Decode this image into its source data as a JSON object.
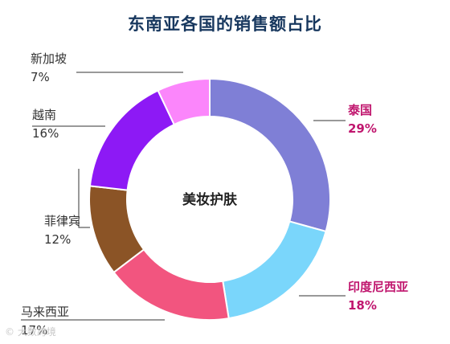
{
  "chart_data": {
    "type": "pie",
    "title": "东南亚各国的销售额占比",
    "center_label": "美妆护肤",
    "slices": [
      {
        "name": "泰国",
        "value": 29,
        "label": "29%",
        "color": "#7f7fd6",
        "label_color": "#c0166e"
      },
      {
        "name": "印度尼西亚",
        "value": 18,
        "label": "18%",
        "color": "#7ad6fb",
        "label_color": "#c0166e"
      },
      {
        "name": "马来西亚",
        "value": 17,
        "label": "17%",
        "color": "#f2557f",
        "label_color": "#333333"
      },
      {
        "name": "菲律宾",
        "value": 12,
        "label": "12%",
        "color": "#8b5426",
        "label_color": "#333333"
      },
      {
        "name": "越南",
        "value": 16,
        "label": "16%",
        "color": "#8d19f5",
        "label_color": "#333333"
      },
      {
        "name": "新加坡",
        "value": 7,
        "label": "7%",
        "color": "#fb86fb",
        "label_color": "#333333"
      }
    ]
  },
  "watermark": "© 大数跨境"
}
